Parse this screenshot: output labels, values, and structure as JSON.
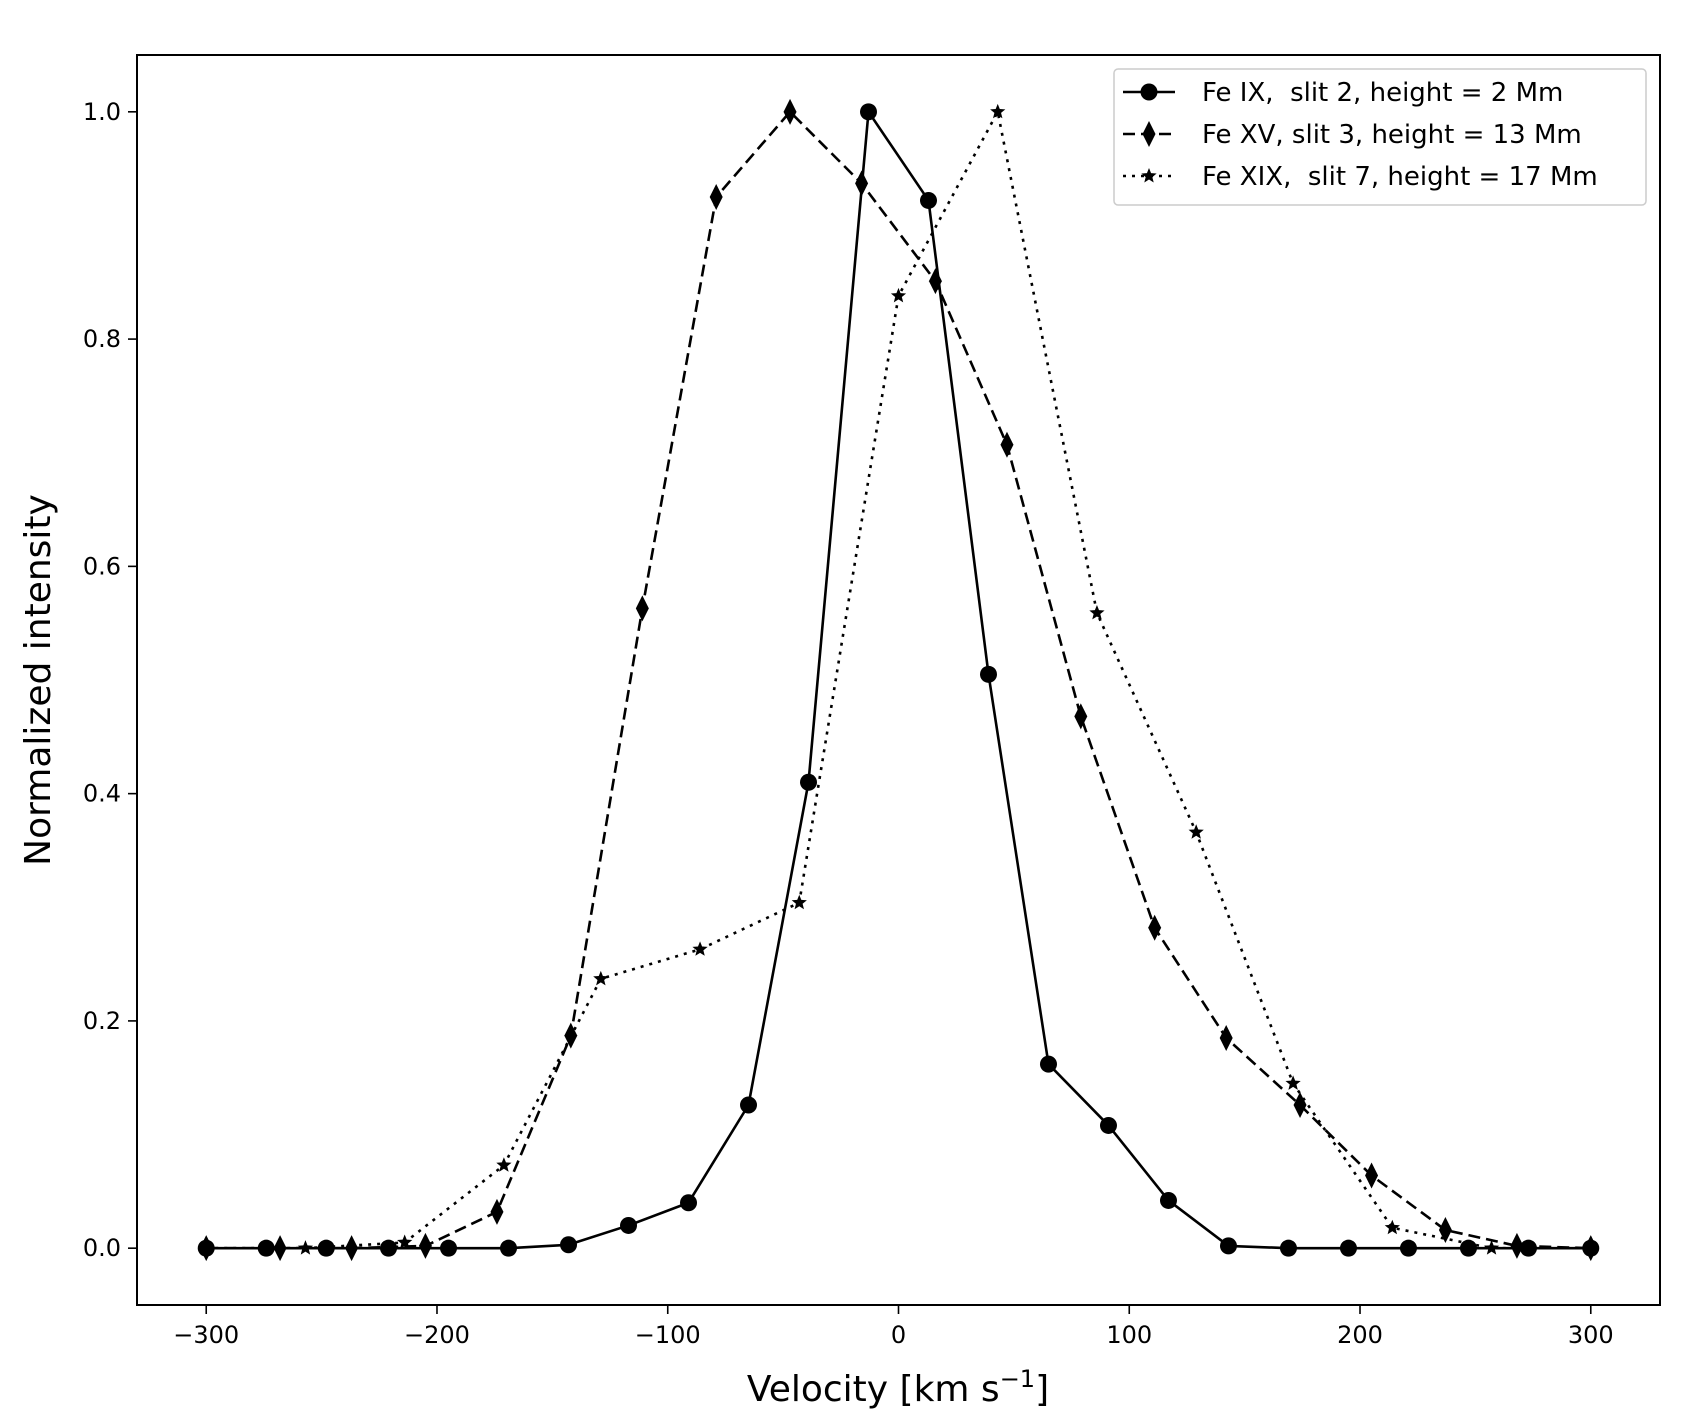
{
  "chart_data": {
    "type": "line",
    "title": "",
    "xlabel": "Velocity [km s",
    "xlabel_sup": "−1",
    "xlabel_end": "]",
    "ylabel": "Normalized intensity",
    "xlim": [
      -330,
      330
    ],
    "ylim": [
      -0.05,
      1.05
    ],
    "xticks": [
      -300,
      -200,
      -100,
      0,
      100,
      200,
      300
    ],
    "xtick_labels": [
      "−300",
      "−200",
      "−100",
      "0",
      "100",
      "200",
      "300"
    ],
    "yticks": [
      0.0,
      0.2,
      0.4,
      0.6,
      0.8,
      1.0
    ],
    "ytick_labels": [
      "0.0",
      "0.2",
      "0.4",
      "0.6",
      "0.8",
      "1.0"
    ],
    "grid": false,
    "legend_position": "top-right",
    "color": "#000000",
    "series": [
      {
        "name": "Fe IX,  slit 2, height = 2 Mm",
        "marker": "circle",
        "linestyle": "solid",
        "x": [
          -300,
          -274,
          -248,
          -221,
          -195,
          -169,
          -143,
          -117,
          -91,
          -65,
          -39,
          -13,
          13,
          39,
          65,
          91,
          117,
          143,
          169,
          195,
          221,
          247,
          273,
          300
        ],
        "y": [
          0.0,
          0.0,
          0.0,
          0.0,
          0.0,
          0.0,
          0.003,
          0.02,
          0.04,
          0.126,
          0.41,
          1.0,
          0.922,
          0.505,
          0.162,
          0.108,
          0.042,
          0.002,
          0.0,
          0.0,
          0.0,
          0.0,
          0.0,
          0.0
        ]
      },
      {
        "name": "Fe XV, slit 3, height = 13 Mm",
        "marker": "diamond",
        "linestyle": "dashed",
        "x": [
          -300,
          -268,
          -237,
          -205,
          -174,
          -142,
          -111,
          -79,
          -47,
          -16,
          16,
          47,
          79,
          111,
          142,
          174,
          205,
          237,
          268,
          300
        ],
        "y": [
          0.0,
          0.0,
          0.0,
          0.002,
          0.032,
          0.187,
          0.563,
          0.925,
          1.0,
          0.937,
          0.851,
          0.707,
          0.468,
          0.282,
          0.185,
          0.126,
          0.064,
          0.016,
          0.002,
          0.0
        ]
      },
      {
        "name": "Fe XIX,  slit 7, height = 17 Mm",
        "marker": "star",
        "linestyle": "dotted",
        "x": [
          -300,
          -257,
          -214,
          -171,
          -129,
          -86,
          -43,
          0,
          43,
          86,
          129,
          171,
          214,
          257,
          300
        ],
        "y": [
          0.0,
          0.0,
          0.005,
          0.073,
          0.237,
          0.263,
          0.304,
          0.838,
          1.0,
          0.559,
          0.366,
          0.145,
          0.018,
          0.0,
          0.0
        ]
      }
    ]
  }
}
